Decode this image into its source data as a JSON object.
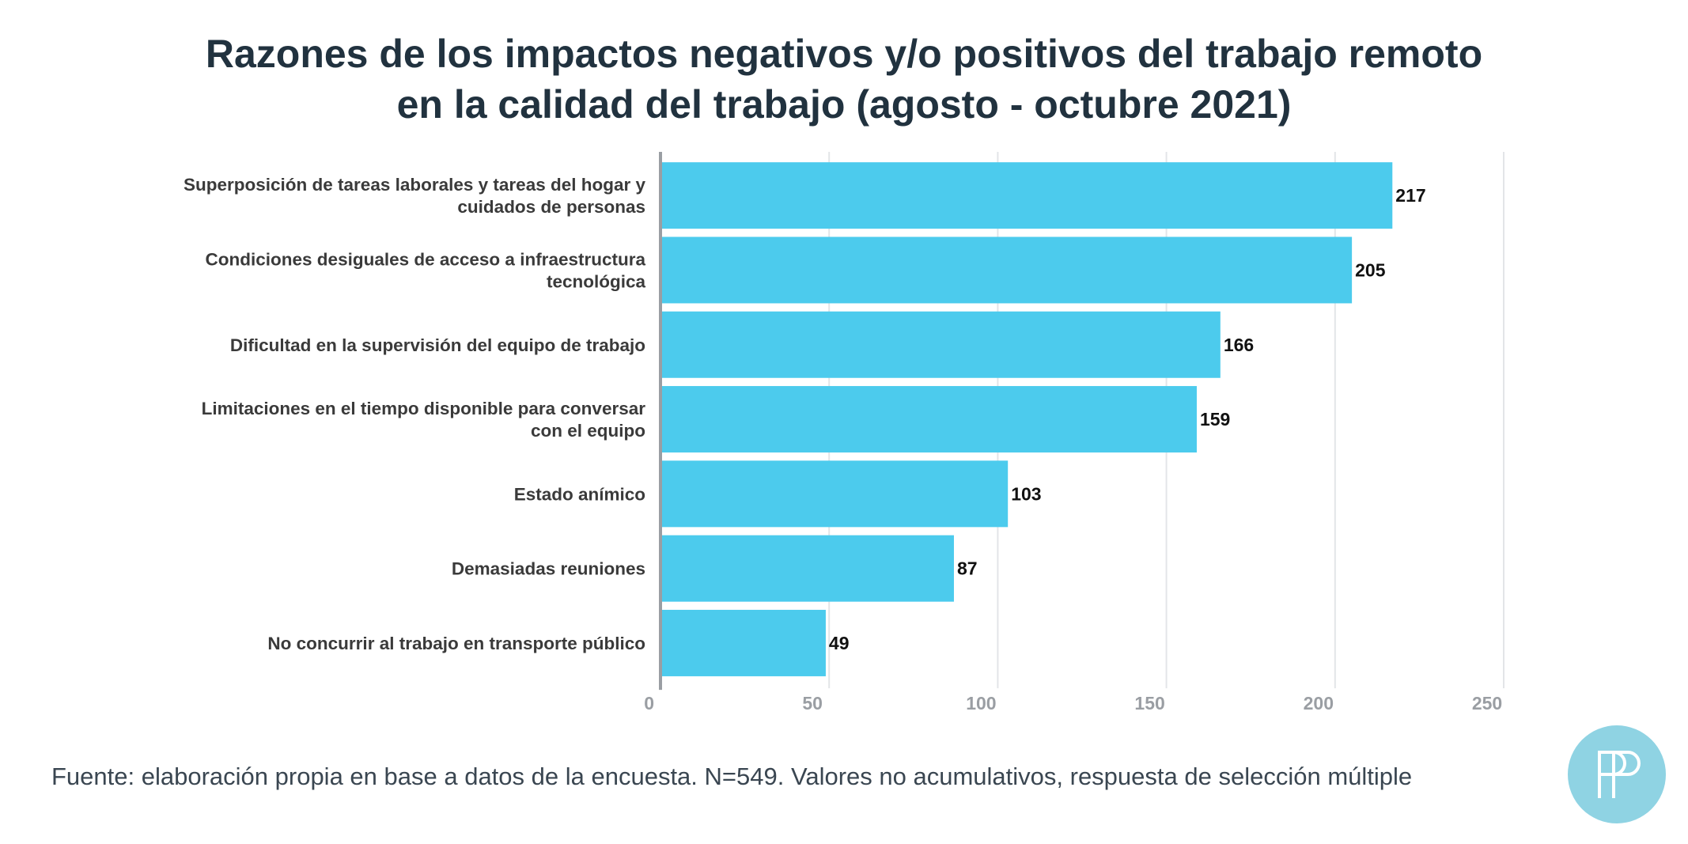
{
  "title": {
    "line1": "Razones de los impactos negativos y/o positivos del trabajo remoto",
    "line2": "en la calidad del trabajo (agosto - octubre 2021)"
  },
  "source": "Fuente: elaboración propia en base a datos de la encuesta. N=549. Valores no acumulativos, respuesta de selección múltiple",
  "logo": {
    "icon": "pp-monogram-icon",
    "color": "#8fd3e3"
  },
  "colors": {
    "bar": "#4ccbed",
    "grid": "#e3e5e8",
    "axis": "#9a9ea3",
    "tick": "#9a9ea3",
    "category": "#3a3a3a",
    "value": "#111111"
  },
  "chart_data": {
    "type": "bar",
    "orientation": "horizontal",
    "title": "Razones de los impactos negativos y/o positivos del trabajo remoto en la calidad del trabajo (agosto - octubre 2021)",
    "categories": [
      [
        "Superposición de tareas laborales y tareas del hogar y",
        "cuidados de personas"
      ],
      [
        "Condiciones desiguales de acceso a infraestructura",
        "tecnológica"
      ],
      [
        "Dificultad en la supervisión del equipo de trabajo"
      ],
      [
        "Limitaciones en el tiempo disponible para conversar",
        "con el equipo"
      ],
      [
        "Estado anímico"
      ],
      [
        "Demasiadas reuniones"
      ],
      [
        "No concurrir al trabajo en transporte público"
      ]
    ],
    "values": [
      217,
      205,
      166,
      159,
      103,
      87,
      49
    ],
    "xlim": [
      0,
      250
    ],
    "xticks": [
      0,
      50,
      100,
      150,
      200,
      250
    ],
    "grid": true,
    "data_labels": true
  }
}
